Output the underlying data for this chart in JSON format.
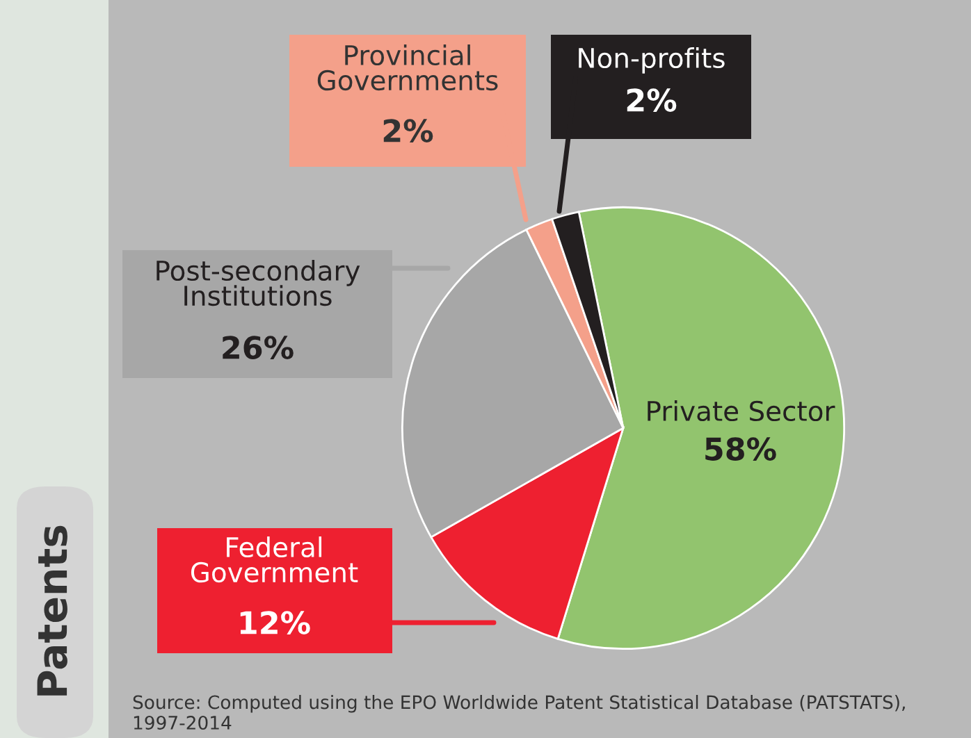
{
  "chart_data": {
    "type": "pie",
    "title": "Patents",
    "categories": [
      "Private Sector",
      "Federal Government",
      "Post-secondary Institutions",
      "Provincial Governments",
      "Non-profits"
    ],
    "values": [
      58,
      12,
      26,
      2,
      2
    ],
    "value_labels": [
      "58%",
      "12%",
      "26%",
      "2%",
      "2%"
    ],
    "colors": [
      "#92c46e",
      "#ee2030",
      "#a7a7a7",
      "#f4a08a",
      "#231f20"
    ],
    "annotations": [
      "Source: Computed using the EPO Worldwide Patent Statistical Database (PATSTATS), 1997-2014"
    ]
  }
}
